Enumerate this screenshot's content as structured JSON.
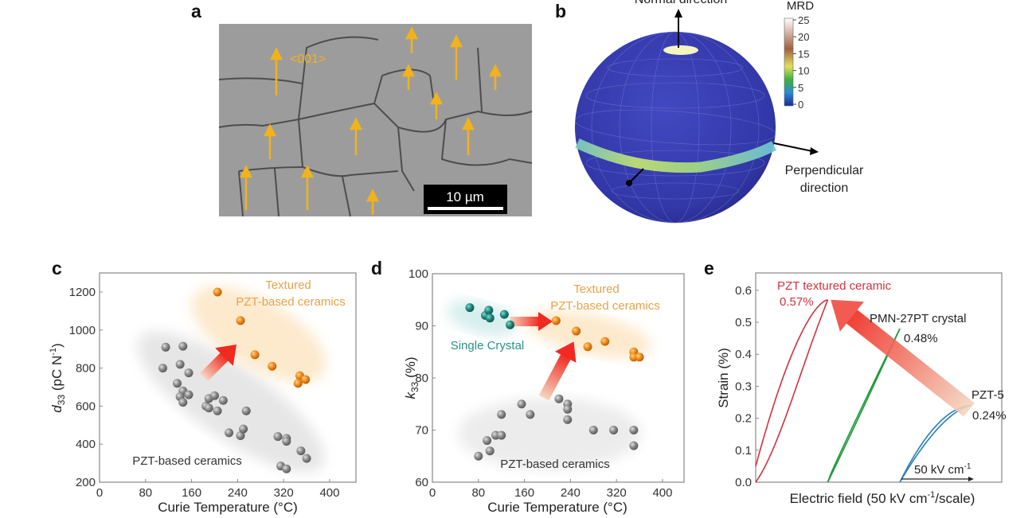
{
  "panels": {
    "a": {
      "letter": "a",
      "direction_label": "<001>",
      "scale_bar": "10 µm",
      "arrow_color": "#f2b21b"
    },
    "b": {
      "letter": "b",
      "normal_label": "Normal direction",
      "perp_label_1": "Perpendicular",
      "perp_label_2": "direction",
      "colorbar_title": "MRD",
      "colorbar_ticks": [
        "25",
        "20",
        "15",
        "10",
        "5",
        "0"
      ],
      "sphere_color": "#3a3fb0"
    },
    "c": {
      "letter": "c"
    },
    "d": {
      "letter": "d"
    },
    "e": {
      "letter": "e"
    }
  },
  "chart_data": [
    {
      "id": "c",
      "type": "scatter",
      "xlabel": "Curie Temperature (°C)",
      "ylabel": {
        "symbol": "d",
        "sub": "33",
        "unit": " (pC N",
        "sup": "-1",
        "close": ")"
      },
      "xlim": [
        0,
        450
      ],
      "ylim": [
        200,
        1300
      ],
      "xticks": [
        0,
        80,
        160,
        240,
        320,
        400
      ],
      "yticks": [
        200,
        400,
        600,
        800,
        1000,
        1200
      ],
      "grid": false,
      "annotations": {
        "textured_1": "Textured",
        "textured_2": "PZT-based ceramics",
        "ceramics": "PZT-based ceramics"
      },
      "series": [
        {
          "group": "PZT-based ceramics",
          "color": "#8a8a8a",
          "points": [
            [
              115,
              910
            ],
            [
              145,
              915
            ],
            [
              110,
              800
            ],
            [
              140,
              820
            ],
            [
              155,
              775
            ],
            [
              135,
              720
            ],
            [
              145,
              680
            ],
            [
              140,
              650
            ],
            [
              155,
              660
            ],
            [
              145,
              620
            ],
            [
              185,
              600
            ],
            [
              190,
              640
            ],
            [
              200,
              655
            ],
            [
              215,
              630
            ],
            [
              190,
              590
            ],
            [
              205,
              575
            ],
            [
              255,
              575
            ],
            [
              225,
              460
            ],
            [
              245,
              445
            ],
            [
              250,
              480
            ],
            [
              310,
              440
            ],
            [
              325,
              430
            ],
            [
              325,
              415
            ],
            [
              350,
              365
            ],
            [
              360,
              325
            ],
            [
              315,
              285
            ],
            [
              325,
              270
            ]
          ]
        },
        {
          "group": "Textured PZT-based ceramics",
          "color": "#f08c1c",
          "points": [
            [
              205,
              1200
            ],
            [
              245,
              1050
            ],
            [
              270,
              870
            ],
            [
              300,
              810
            ],
            [
              348,
              760
            ],
            [
              345,
              720
            ],
            [
              358,
              740
            ]
          ]
        }
      ]
    },
    {
      "id": "d",
      "type": "scatter",
      "xlabel": "Curie Temperature (°C)",
      "ylabel": {
        "symbol": "k",
        "sub": "33",
        "unit": " (%)"
      },
      "xlim": [
        0,
        450
      ],
      "ylim": [
        60,
        100
      ],
      "xticks": [
        0,
        80,
        160,
        240,
        320,
        400
      ],
      "yticks": [
        60,
        70,
        80,
        90,
        100
      ],
      "grid": false,
      "annotations": {
        "textured_1": "Textured",
        "textured_2": "PZT-based ceramics",
        "single": "Single Crystal",
        "ceramics": "PZT-based ceramics"
      },
      "series": [
        {
          "group": "Single Crystal",
          "color": "#1f8a80",
          "points": [
            [
              65,
              93.5
            ],
            [
              92,
              92
            ],
            [
              98,
              93
            ],
            [
              100,
              91.5
            ],
            [
              125,
              92.2
            ],
            [
              135,
              90.2
            ]
          ]
        },
        {
          "group": "Textured PZT-based ceramics",
          "color": "#f08c1c",
          "points": [
            [
              215,
              91
            ],
            [
              250,
              89
            ],
            [
              270,
              86
            ],
            [
              300,
              87
            ],
            [
              350,
              85
            ],
            [
              350,
              84
            ],
            [
              360,
              84
            ]
          ]
        },
        {
          "group": "PZT-based ceramics",
          "color": "#8a8a8a",
          "points": [
            [
              80,
              65
            ],
            [
              95,
              68
            ],
            [
              100,
              66
            ],
            [
              110,
              69
            ],
            [
              120,
              69
            ],
            [
              120,
              73
            ],
            [
              155,
              75
            ],
            [
              170,
              73
            ],
            [
              220,
              76
            ],
            [
              235,
              75
            ],
            [
              235,
              74
            ],
            [
              235,
              72
            ],
            [
              280,
              70
            ],
            [
              315,
              70
            ],
            [
              350,
              70
            ],
            [
              350,
              67
            ]
          ]
        }
      ]
    },
    {
      "id": "e",
      "type": "line",
      "xlabel": "Electric field (50 kV cm-1/scale)",
      "xlabel_parts": {
        "pre": "Electric field (50 kV cm",
        "sup": "-1",
        "post": "/scale)"
      },
      "ylabel": "Strain (%)",
      "ylim": [
        0,
        0.65
      ],
      "yticks": [
        "0.0",
        "0.1",
        "0.2",
        "0.3",
        "0.4",
        "0.5",
        "0.6"
      ],
      "scale_bar": {
        "pre": "50 kV cm",
        "sup": "-1"
      },
      "series": [
        {
          "name": "PZT textured ceramic",
          "max_strain_label": "0.57%",
          "max_strain": 0.57,
          "x_range": [
            0,
            1
          ],
          "color": "#d0323e"
        },
        {
          "name": "PMN-27PT crystal",
          "max_strain_label": "0.48%",
          "max_strain": 0.48,
          "x_range": [
            1,
            2
          ],
          "color": "#1e9a3a"
        },
        {
          "name": "PZT-5",
          "max_strain_label": "0.24%",
          "max_strain": 0.24,
          "x_range": [
            2,
            3
          ],
          "color": "#2a7fb0"
        }
      ]
    }
  ]
}
